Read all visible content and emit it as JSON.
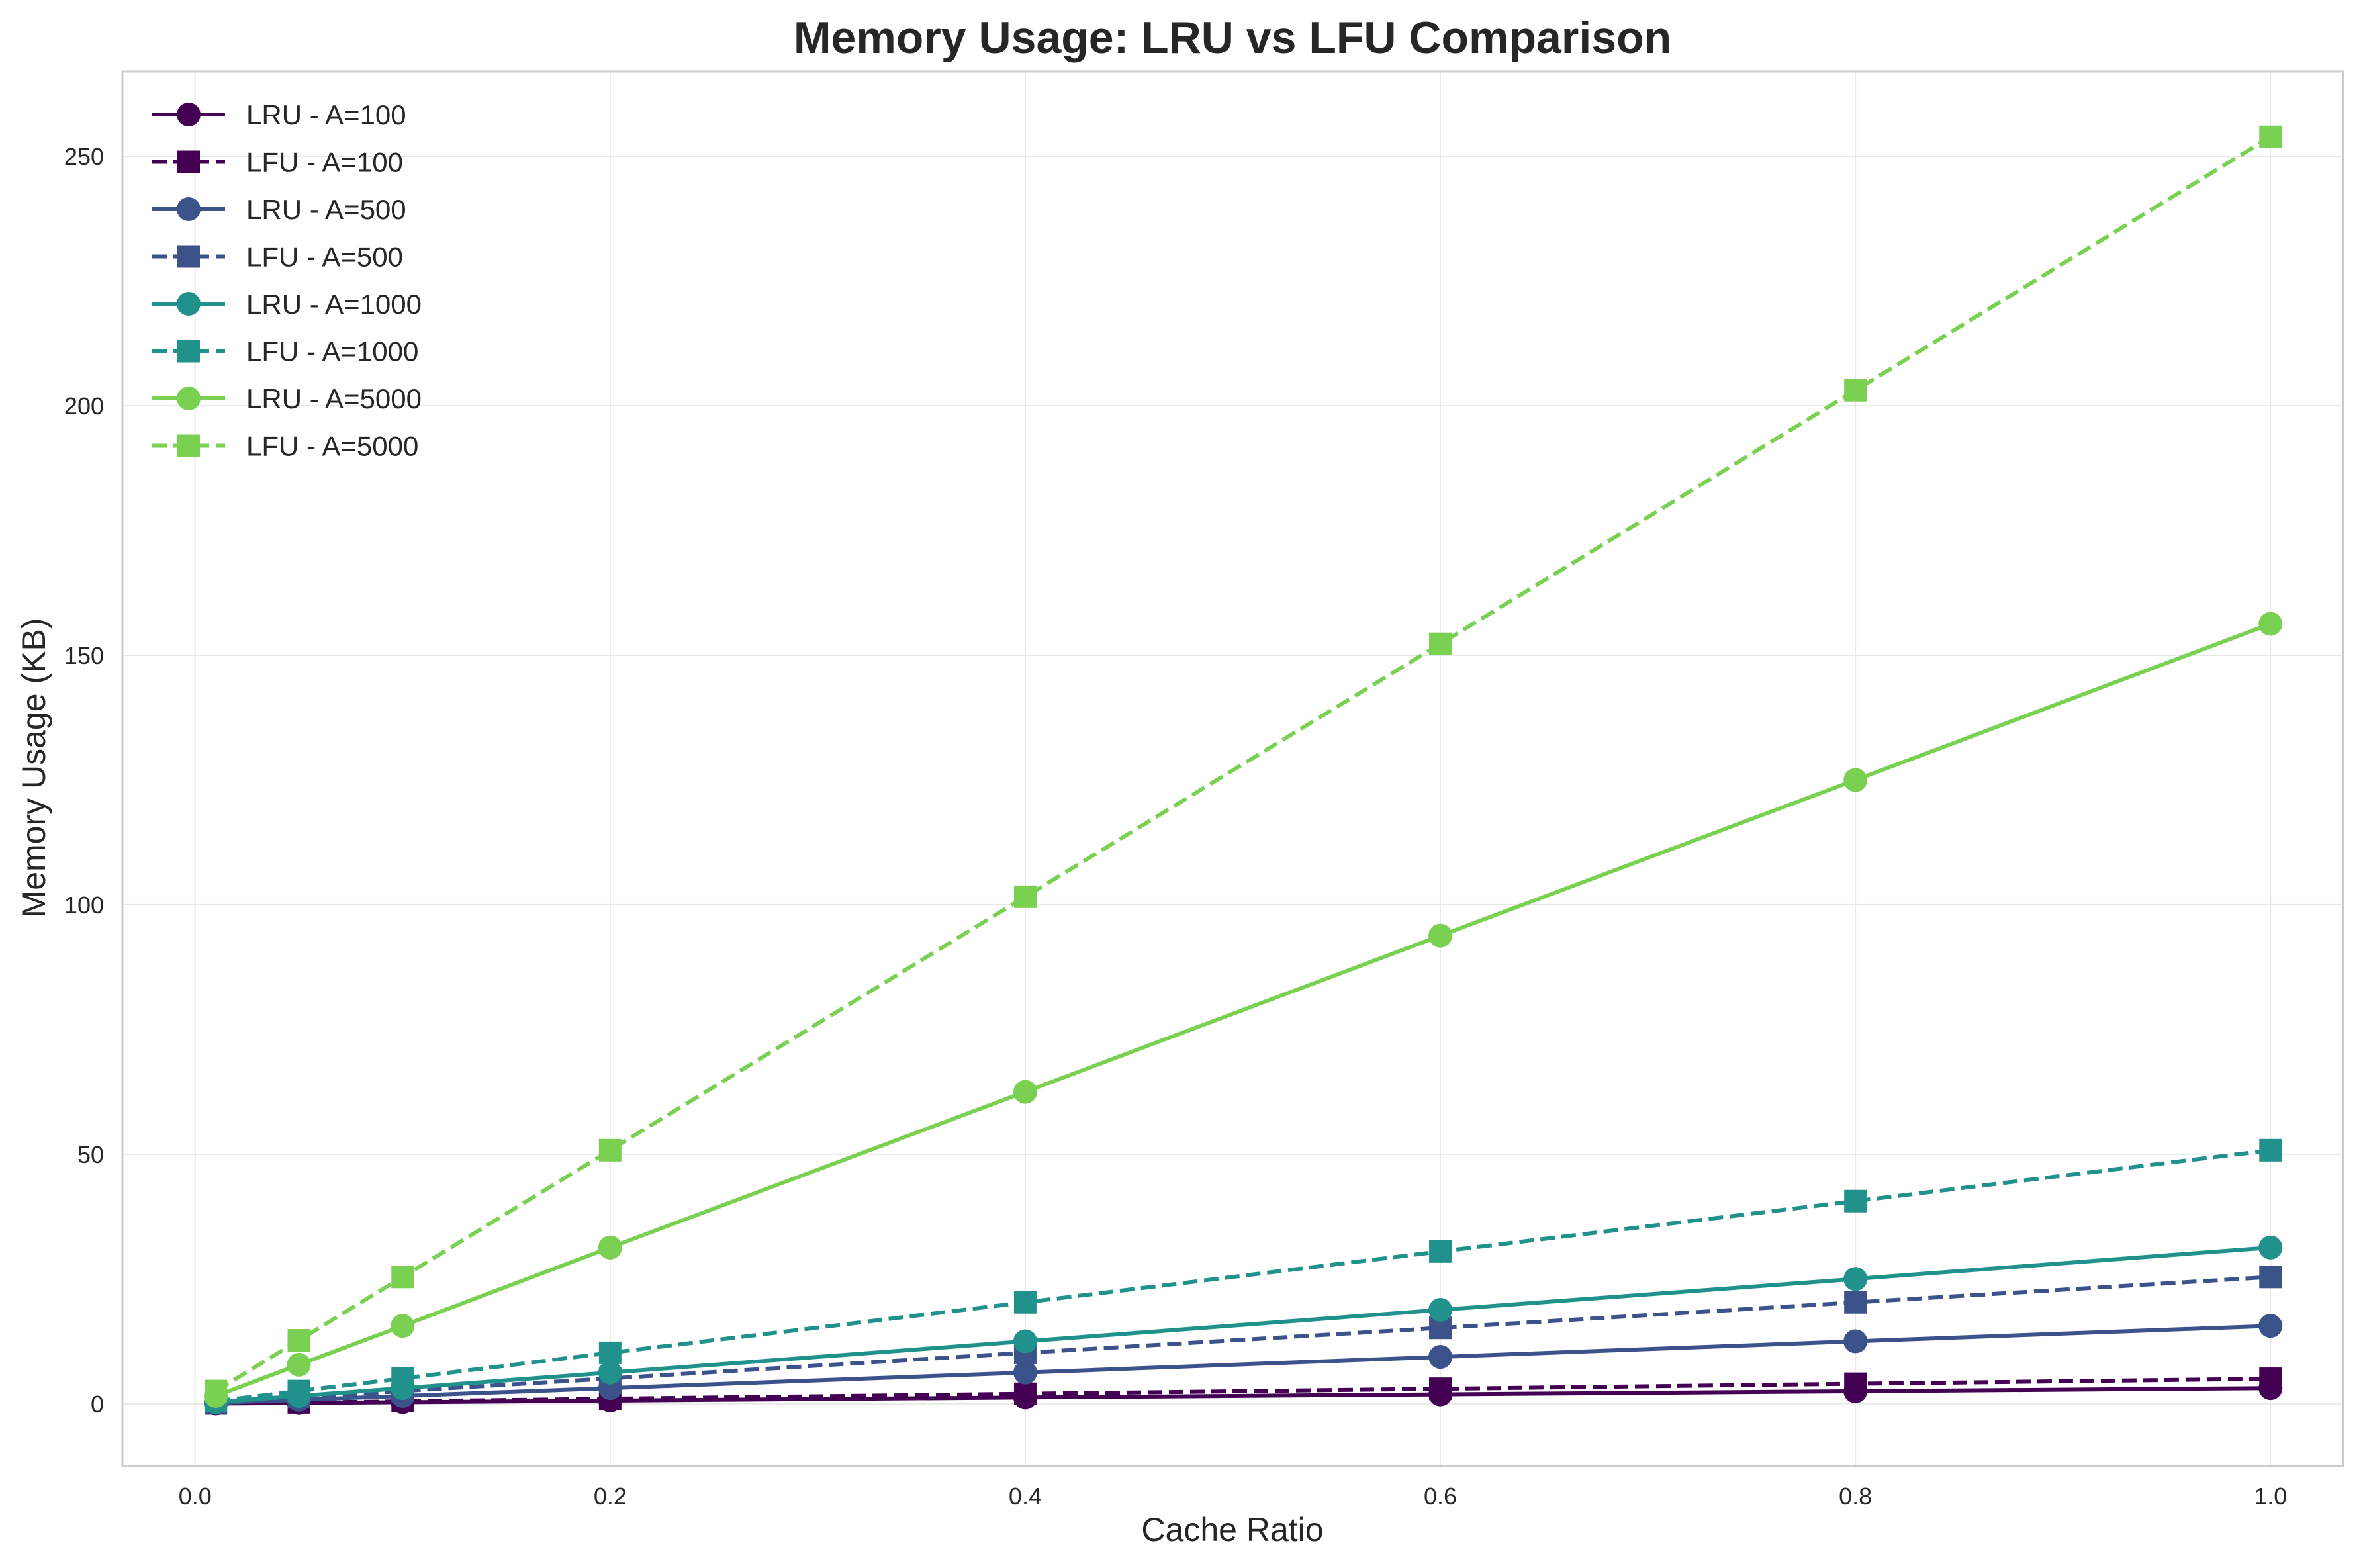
{
  "chart_data": {
    "type": "line",
    "title": "Memory Usage: LRU vs LFU Comparison",
    "xlabel": "Cache Ratio",
    "ylabel": "Memory Usage (KB)",
    "xlim": [
      -0.035,
      1.035
    ],
    "ylim": [
      -12.5,
      267
    ],
    "xticks": [
      0.0,
      0.2,
      0.4,
      0.6,
      0.8,
      1.0
    ],
    "xtick_labels": [
      "0.0",
      "0.2",
      "0.4",
      "0.6",
      "0.8",
      "1.0"
    ],
    "yticks": [
      0,
      50,
      100,
      150,
      200,
      250
    ],
    "ytick_labels": [
      "0",
      "50",
      "100",
      "150",
      "200",
      "250"
    ],
    "grid": true,
    "legend_position": "top-left",
    "x": [
      0.01,
      0.05,
      0.1,
      0.2,
      0.4,
      0.6,
      0.8,
      1.0
    ],
    "series": [
      {
        "name": "LRU - A=100",
        "color": "#440154",
        "marker": "circle",
        "linestyle": "solid",
        "values": [
          0.03,
          0.16,
          0.31,
          0.63,
          1.25,
          1.88,
          2.5,
          3.13
        ]
      },
      {
        "name": "LFU - A=100",
        "color": "#440154",
        "marker": "square",
        "linestyle": "dashed",
        "values": [
          0.05,
          0.25,
          0.5,
          1.0,
          2.0,
          3.0,
          4.0,
          5.0
        ]
      },
      {
        "name": "LRU - A=500",
        "color": "#3b528b",
        "marker": "circle",
        "linestyle": "solid",
        "values": [
          0.16,
          0.78,
          1.56,
          3.13,
          6.25,
          9.38,
          12.5,
          15.6
        ]
      },
      {
        "name": "LFU - A=500",
        "color": "#3b528b",
        "marker": "square",
        "linestyle": "dashed",
        "values": [
          0.25,
          1.27,
          2.54,
          5.08,
          10.2,
          15.2,
          20.3,
          25.4
        ]
      },
      {
        "name": "LRU - A=1000",
        "color": "#21918c",
        "marker": "circle",
        "linestyle": "solid",
        "values": [
          0.31,
          1.56,
          3.13,
          6.25,
          12.5,
          18.8,
          25.0,
          31.3
        ]
      },
      {
        "name": "LFU - A=1000",
        "color": "#21918c",
        "marker": "square",
        "linestyle": "dashed",
        "values": [
          0.51,
          2.54,
          5.08,
          10.2,
          20.3,
          30.5,
          40.6,
          50.8
        ]
      },
      {
        "name": "LRU - A=5000",
        "color": "#7ad151",
        "marker": "circle",
        "linestyle": "solid",
        "values": [
          1.56,
          7.81,
          15.6,
          31.3,
          62.5,
          93.8,
          125.0,
          156.3
        ]
      },
      {
        "name": "LFU - A=5000",
        "color": "#7ad151",
        "marker": "square",
        "linestyle": "dashed",
        "values": [
          2.54,
          12.7,
          25.4,
          50.8,
          101.6,
          152.3,
          203.1,
          253.9
        ]
      }
    ]
  }
}
